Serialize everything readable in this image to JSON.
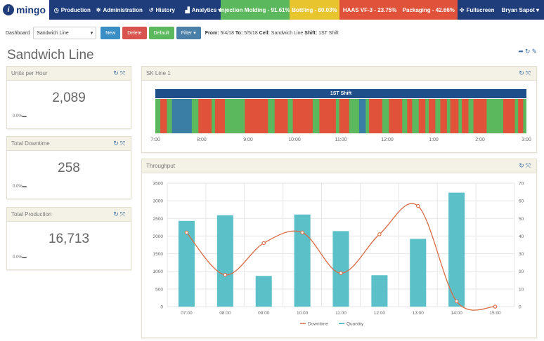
{
  "app": {
    "logo_text": "mingo"
  },
  "nav": {
    "items": [
      {
        "label": "Production",
        "icon": "clock-icon"
      },
      {
        "label": "Administration",
        "icon": "gear-icon"
      },
      {
        "label": "History",
        "icon": "history-icon"
      },
      {
        "label": "Analytics ▾",
        "icon": "bar-chart-icon"
      }
    ],
    "statuses": [
      {
        "label": "Injection Molding - 91.61%",
        "color": "#5cb85c"
      },
      {
        "label": "Bottling - 80.03%",
        "color": "#e8c52f"
      },
      {
        "label": "HAAS VF-3 - 23.75%",
        "color": "#e0533a"
      },
      {
        "label": "Packaging - 42.66%",
        "color": "#e0533a"
      }
    ],
    "fullscreen_label": "Fullscreen",
    "user_label": "Bryan Sapot ▾"
  },
  "toolbar": {
    "dashboard_label": "Dashboard",
    "dashboard_value": "Sandwich Line",
    "new_label": "New",
    "delete_label": "Delete",
    "default_label": "Default",
    "filter_label": "Filter ▾",
    "filter_from_label": "From:",
    "filter_from": "5/4/18",
    "filter_to_label": "To:",
    "filter_to": "5/5/18",
    "filter_cell_label": "Cell:",
    "filter_cell": "Sandwich Line",
    "filter_shift_label": "Shift:",
    "filter_shift": "1ST Shift"
  },
  "page": {
    "title": "Sandwich Line"
  },
  "kpis": [
    {
      "title": "Units per Hour",
      "value": "2,089",
      "delta": "0.0%"
    },
    {
      "title": "Total Downtime",
      "value": "258",
      "delta": "0.0%"
    },
    {
      "title": "Total Production",
      "value": "16,713",
      "delta": "0.0%"
    }
  ],
  "timeline_panel": {
    "title": "SK Line 1",
    "shift_label": "1ST Shift",
    "axis": [
      "7:00",
      "8:00",
      "9:00",
      "10:00",
      "11:00",
      "12:00",
      "1:00",
      "2:00",
      "3:00"
    ],
    "colors": {
      "run": "#5cb85c",
      "down": "#e0533a",
      "idle": "#3a7ea5"
    },
    "segments": [
      [
        "run",
        1.5
      ],
      [
        "down",
        2
      ],
      [
        "run",
        1.5
      ],
      [
        "idle",
        6
      ],
      [
        "run",
        2
      ],
      [
        "down",
        4
      ],
      [
        "run",
        1
      ],
      [
        "down",
        3
      ],
      [
        "run",
        6
      ],
      [
        "down",
        7
      ],
      [
        "run",
        2
      ],
      [
        "down",
        4
      ],
      [
        "run",
        1.5
      ],
      [
        "down",
        6
      ],
      [
        "run",
        2
      ],
      [
        "down",
        5
      ],
      [
        "run",
        1
      ],
      [
        "down",
        3
      ],
      [
        "run",
        3
      ],
      [
        "idle",
        2
      ],
      [
        "run",
        1
      ],
      [
        "down",
        4
      ],
      [
        "run",
        2
      ],
      [
        "down",
        4
      ],
      [
        "run",
        1.5
      ],
      [
        "down",
        1.5
      ],
      [
        "run",
        2
      ],
      [
        "down",
        2
      ],
      [
        "run",
        1
      ],
      [
        "down",
        2
      ],
      [
        "run",
        1.5
      ],
      [
        "down",
        2
      ],
      [
        "run",
        1
      ],
      [
        "down",
        2.5
      ],
      [
        "run",
        1
      ],
      [
        "down",
        2
      ],
      [
        "run",
        1.5
      ],
      [
        "down",
        4
      ],
      [
        "run",
        5
      ],
      [
        "down",
        3.5
      ],
      [
        "run",
        1
      ],
      [
        "down",
        1.5
      ],
      [
        "run",
        1
      ]
    ]
  },
  "throughput_panel": {
    "title": "Throughput"
  },
  "chart_data": {
    "type": "bar",
    "categories": [
      "07:00",
      "08:00",
      "09:00",
      "10:00",
      "11:00",
      "12:00",
      "13:00",
      "14:00",
      "15:00"
    ],
    "series": [
      {
        "name": "Quantity",
        "type": "bar",
        "axis": "left",
        "color": "#5bc0c8",
        "values": [
          2430,
          2590,
          870,
          2610,
          2140,
          890,
          1920,
          3230,
          0
        ]
      },
      {
        "name": "Downtime",
        "type": "line",
        "axis": "right",
        "color": "#d96b45",
        "values": [
          42,
          18,
          36,
          42,
          19,
          41,
          57,
          3,
          0
        ]
      }
    ],
    "y_left_ticks": [
      "0",
      "500",
      "1000",
      "1500",
      "2000",
      "2500",
      "3000",
      "3500"
    ],
    "y_right_ticks": [
      "0",
      "10",
      "20",
      "30",
      "40",
      "50",
      "60",
      "70"
    ],
    "ylim_left": [
      0,
      3500
    ],
    "ylim_right": [
      0,
      70
    ],
    "grid": true,
    "legend": "bottom"
  }
}
